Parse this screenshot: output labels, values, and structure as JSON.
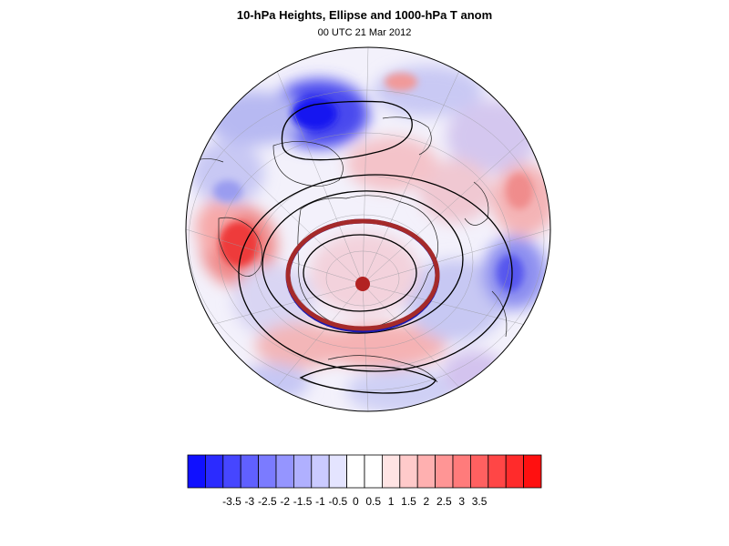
{
  "header": {
    "title": "10-hPa Heights, Ellipse and 1000-hPa T anom",
    "subtitle": "00 UTC 21 Mar 2012"
  },
  "colorbar": {
    "colors": [
      "#1010ff",
      "#2b2bff",
      "#4646ff",
      "#6060ff",
      "#7b7bff",
      "#9595ff",
      "#b0b0ff",
      "#cacaff",
      "#e4e4ff",
      "#ffffff",
      "#ffffff",
      "#ffe4e4",
      "#ffcaca",
      "#ffb0b0",
      "#ff9595",
      "#ff7b7b",
      "#ff6060",
      "#ff4646",
      "#ff2b2b",
      "#ff1010"
    ],
    "labels": [
      "-3.5",
      "-3",
      "-2.5",
      "-2",
      "-1.5",
      "-1",
      "-0.5",
      "0",
      "0.5",
      "1",
      "1.5",
      "2",
      "2.5",
      "3",
      "3.5"
    ]
  },
  "map": {
    "ellipse_color_fit": "#a52a2a",
    "ellipse_color_obs": "#1a1ab0",
    "centroid_color": "#b22222"
  }
}
